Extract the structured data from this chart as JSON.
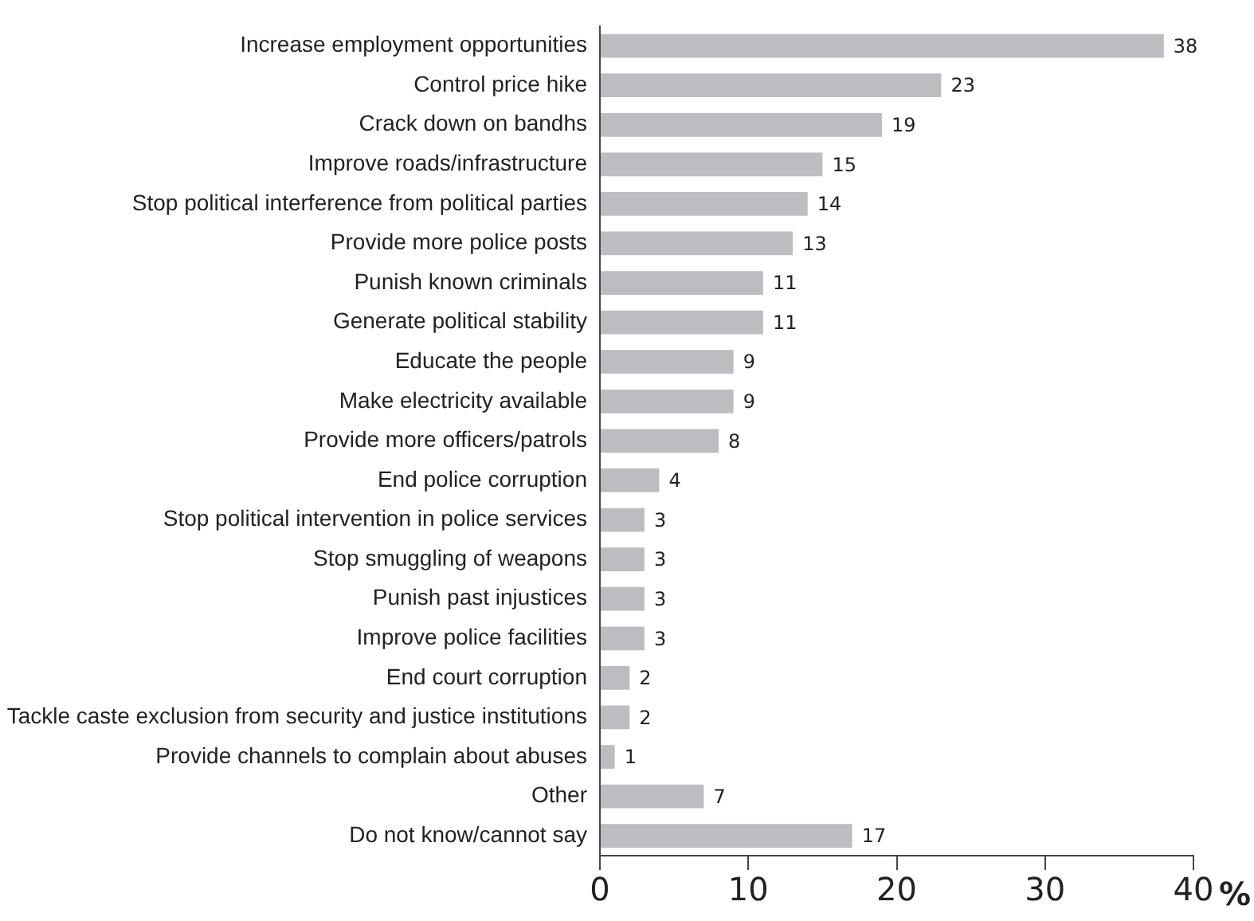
{
  "chart_data": {
    "type": "bar",
    "orientation": "horizontal",
    "xlabel": "%",
    "categories": [
      "Increase employment opportunities",
      "Control price hike",
      "Crack down on bandhs",
      "Improve roads/infrastructure",
      "Stop political interference from political parties",
      "Provide more police posts",
      "Punish known criminals",
      "Generate political stability",
      "Educate the people",
      "Make electricity available",
      "Provide more officers/patrols",
      "End police corruption",
      "Stop political intervention in police services",
      "Stop smuggling of weapons",
      "Punish past injustices",
      "Improve police facilities",
      "End court corruption",
      "Tackle caste exclusion from security and justice institutions",
      "Provide channels to complain about abuses",
      "Other",
      "Do not know/cannot say"
    ],
    "values": [
      38,
      23,
      19,
      15,
      14,
      13,
      11,
      11,
      9,
      9,
      8,
      4,
      3,
      3,
      3,
      3,
      2,
      2,
      1,
      7,
      17
    ],
    "color": "#bcbdc0",
    "xlim": [
      0,
      40
    ],
    "xticks": [
      0,
      10,
      20,
      30,
      40
    ],
    "data_labels": true,
    "grid": false,
    "legend": false
  }
}
